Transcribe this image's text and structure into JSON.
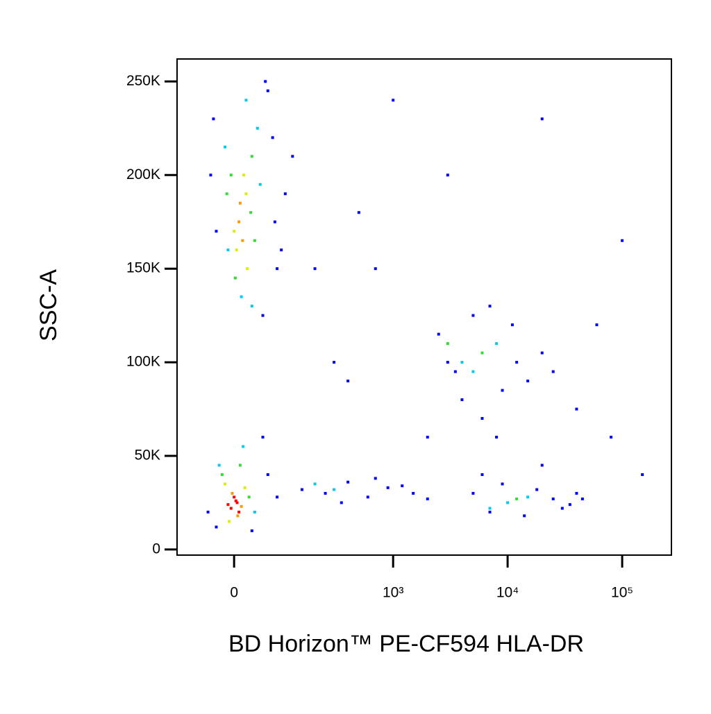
{
  "chart_data": {
    "type": "scatter",
    "xlabel": "BD Horizon™ PE-CF594 HLA-DR",
    "ylabel": "SSC-A",
    "xscale": "biexponential",
    "xlim": [
      -116,
      269000
    ],
    "ylim": [
      -3000,
      262000
    ],
    "xticks": [
      0,
      {
        "value": 1000,
        "label": "10³"
      },
      {
        "value": 10000,
        "label": "10⁴"
      },
      {
        "value": 100000,
        "label": "10⁵"
      }
    ],
    "yticks": [
      0,
      {
        "value": 50000,
        "label": "50K"
      },
      {
        "value": 100000,
        "label": "100K"
      },
      {
        "value": 150000,
        "label": "150K"
      },
      {
        "value": 200000,
        "label": "200K"
      },
      {
        "value": 250000,
        "label": "250K"
      }
    ],
    "series": [
      {
        "color": "#0000ff",
        "x": [
          -40,
          60,
          80,
          -30,
          70,
          50,
          100,
          -35,
          90,
          120,
          55,
          75,
          -45,
          60,
          -30,
          50,
          80,
          30,
          150,
          250,
          400,
          600,
          900,
          1500,
          2000,
          350,
          700,
          1200,
          2500,
          3500,
          5000,
          7000,
          9000,
          12000,
          15000,
          20000,
          4000,
          6000,
          11000,
          25000,
          3000,
          8000,
          5000,
          7000,
          9000,
          14000,
          18000,
          25000,
          35000,
          40000,
          6000,
          20000,
          30000,
          45000,
          500,
          1000,
          3000,
          200,
          400,
          20000,
          60000,
          80000,
          150000,
          2000,
          700,
          100000,
          40000,
          300
        ],
        "values": [
          200000,
          245000,
          150000,
          170000,
          220000,
          125000,
          190000,
          230000,
          160000,
          210000,
          250000,
          175000,
          20000,
          40000,
          12000,
          60000,
          28000,
          10000,
          32000,
          30000,
          36000,
          28000,
          33000,
          30000,
          27000,
          25000,
          38000,
          34000,
          115000,
          95000,
          125000,
          130000,
          85000,
          100000,
          90000,
          105000,
          80000,
          70000,
          120000,
          95000,
          100000,
          60000,
          30000,
          20000,
          35000,
          18000,
          32000,
          27000,
          24000,
          30000,
          40000,
          45000,
          22000,
          27000,
          180000,
          240000,
          200000,
          150000,
          90000,
          230000,
          120000,
          60000,
          40000,
          60000,
          150000,
          165000,
          75000,
          100000
        ]
      },
      {
        "color": "#00ccee",
        "x": [
          -25,
          35,
          15,
          -15,
          40,
          12,
          45,
          -10,
          20,
          5000,
          8000,
          4000,
          10000,
          15000,
          7000,
          300,
          200,
          30
        ],
        "values": [
          45000,
          20000,
          55000,
          215000,
          225000,
          135000,
          195000,
          160000,
          240000,
          95000,
          110000,
          100000,
          25000,
          28000,
          22000,
          32000,
          35000,
          130000
        ]
      },
      {
        "color": "#33dd33",
        "x": [
          -20,
          25,
          10,
          -5,
          30,
          2,
          28,
          35,
          6000,
          3000,
          12000,
          -12
        ],
        "values": [
          40000,
          28000,
          45000,
          200000,
          210000,
          145000,
          180000,
          165000,
          105000,
          110000,
          27000,
          190000
        ]
      },
      {
        "color": "#ddee00",
        "x": [
          -15,
          18,
          -8,
          20,
          4,
          16,
          22,
          0
        ],
        "values": [
          35000,
          33000,
          15000,
          190000,
          160000,
          200000,
          150000,
          170000
        ]
      },
      {
        "color": "#ff9900",
        "x": [
          -3,
          6,
          12,
          8,
          14,
          10
        ],
        "values": [
          30000,
          18000,
          23000,
          175000,
          165000,
          185000
        ]
      },
      {
        "color": "#ff0000",
        "x": [
          -5,
          5,
          0,
          -10,
          8,
          3
        ],
        "values": [
          22000,
          25000,
          28000,
          24000,
          20000,
          26000
        ]
      }
    ]
  }
}
